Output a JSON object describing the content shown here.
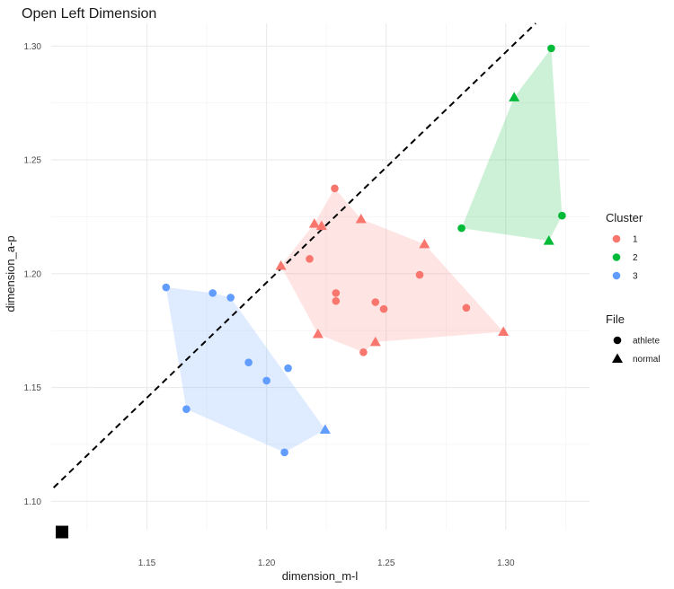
{
  "chart_data": {
    "type": "scatter",
    "title": "Open Left Dimension",
    "xlabel": "dimension_m-l",
    "ylabel": "dimension_a-p",
    "xlim": [
      1.11,
      1.335
    ],
    "ylim": [
      1.0875,
      1.31
    ],
    "x_ticks": [
      "1.15",
      "1.20",
      "1.25",
      "1.30"
    ],
    "y_ticks": [
      "1.10",
      "1.15",
      "1.20",
      "1.25",
      "1.30"
    ],
    "grid": true,
    "legend_position": "right",
    "legend": {
      "cluster_title": "Cluster",
      "clusters": [
        {
          "label": "1",
          "color": "#F8766D"
        },
        {
          "label": "2",
          "color": "#00BA38"
        },
        {
          "label": "3",
          "color": "#619CFF"
        }
      ],
      "file_title": "File",
      "files": [
        {
          "label": "athlete",
          "shape": "circle"
        },
        {
          "label": "normal",
          "shape": "triangle"
        }
      ]
    },
    "reference_line": {
      "style": "dashed",
      "color": "#000000",
      "x": [
        1.111,
        1.3125
      ],
      "y": [
        1.106,
        1.31
      ]
    },
    "marker": {
      "shape": "square",
      "color": "#000000",
      "x": 1.1145,
      "y": 1.0865
    },
    "series": [
      {
        "name": "1",
        "color": "#F8766D",
        "hull": [
          [
            1.2285,
            1.2375
          ],
          [
            1.2395,
            1.224
          ],
          [
            1.266,
            1.213
          ],
          [
            1.299,
            1.1745
          ],
          [
            1.2455,
            1.17
          ],
          [
            1.2405,
            1.1655
          ],
          [
            1.2215,
            1.1735
          ],
          [
            1.206,
            1.2035
          ],
          [
            1.22,
            1.222
          ]
        ],
        "points": [
          {
            "x": 1.2285,
            "y": 1.2375,
            "file": "athlete"
          },
          {
            "x": 1.218,
            "y": 1.2065,
            "file": "athlete"
          },
          {
            "x": 1.229,
            "y": 1.1915,
            "file": "athlete"
          },
          {
            "x": 1.229,
            "y": 1.188,
            "file": "athlete"
          },
          {
            "x": 1.2455,
            "y": 1.1875,
            "file": "athlete"
          },
          {
            "x": 1.249,
            "y": 1.1845,
            "file": "athlete"
          },
          {
            "x": 1.2405,
            "y": 1.1655,
            "file": "athlete"
          },
          {
            "x": 1.264,
            "y": 1.1995,
            "file": "athlete"
          },
          {
            "x": 1.2835,
            "y": 1.185,
            "file": "athlete"
          },
          {
            "x": 1.22,
            "y": 1.222,
            "file": "normal"
          },
          {
            "x": 1.223,
            "y": 1.221,
            "file": "normal"
          },
          {
            "x": 1.2395,
            "y": 1.224,
            "file": "normal"
          },
          {
            "x": 1.206,
            "y": 1.2035,
            "file": "normal"
          },
          {
            "x": 1.266,
            "y": 1.213,
            "file": "normal"
          },
          {
            "x": 1.2215,
            "y": 1.1735,
            "file": "normal"
          },
          {
            "x": 1.2455,
            "y": 1.17,
            "file": "normal"
          },
          {
            "x": 1.299,
            "y": 1.1745,
            "file": "normal"
          }
        ]
      },
      {
        "name": "2",
        "color": "#00BA38",
        "hull": [
          [
            1.319,
            1.299
          ],
          [
            1.3235,
            1.2255
          ],
          [
            1.318,
            1.2145
          ],
          [
            1.2815,
            1.22
          ],
          [
            1.3035,
            1.2775
          ]
        ],
        "points": [
          {
            "x": 1.319,
            "y": 1.299,
            "file": "athlete"
          },
          {
            "x": 1.2815,
            "y": 1.22,
            "file": "athlete"
          },
          {
            "x": 1.3235,
            "y": 1.2255,
            "file": "athlete"
          },
          {
            "x": 1.3035,
            "y": 1.2775,
            "file": "normal"
          },
          {
            "x": 1.318,
            "y": 1.2145,
            "file": "normal"
          }
        ]
      },
      {
        "name": "3",
        "color": "#619CFF",
        "hull": [
          [
            1.158,
            1.194
          ],
          [
            1.1775,
            1.1915
          ],
          [
            1.185,
            1.1895
          ],
          [
            1.2245,
            1.1315
          ],
          [
            1.2075,
            1.1215
          ],
          [
            1.1665,
            1.1405
          ]
        ],
        "points": [
          {
            "x": 1.158,
            "y": 1.194,
            "file": "athlete"
          },
          {
            "x": 1.1775,
            "y": 1.1915,
            "file": "athlete"
          },
          {
            "x": 1.185,
            "y": 1.1895,
            "file": "athlete"
          },
          {
            "x": 1.1925,
            "y": 1.161,
            "file": "athlete"
          },
          {
            "x": 1.2,
            "y": 1.153,
            "file": "athlete"
          },
          {
            "x": 1.209,
            "y": 1.1585,
            "file": "athlete"
          },
          {
            "x": 1.1665,
            "y": 1.1405,
            "file": "athlete"
          },
          {
            "x": 1.2075,
            "y": 1.1215,
            "file": "athlete"
          },
          {
            "x": 1.2245,
            "y": 1.1315,
            "file": "normal"
          }
        ]
      }
    ]
  }
}
